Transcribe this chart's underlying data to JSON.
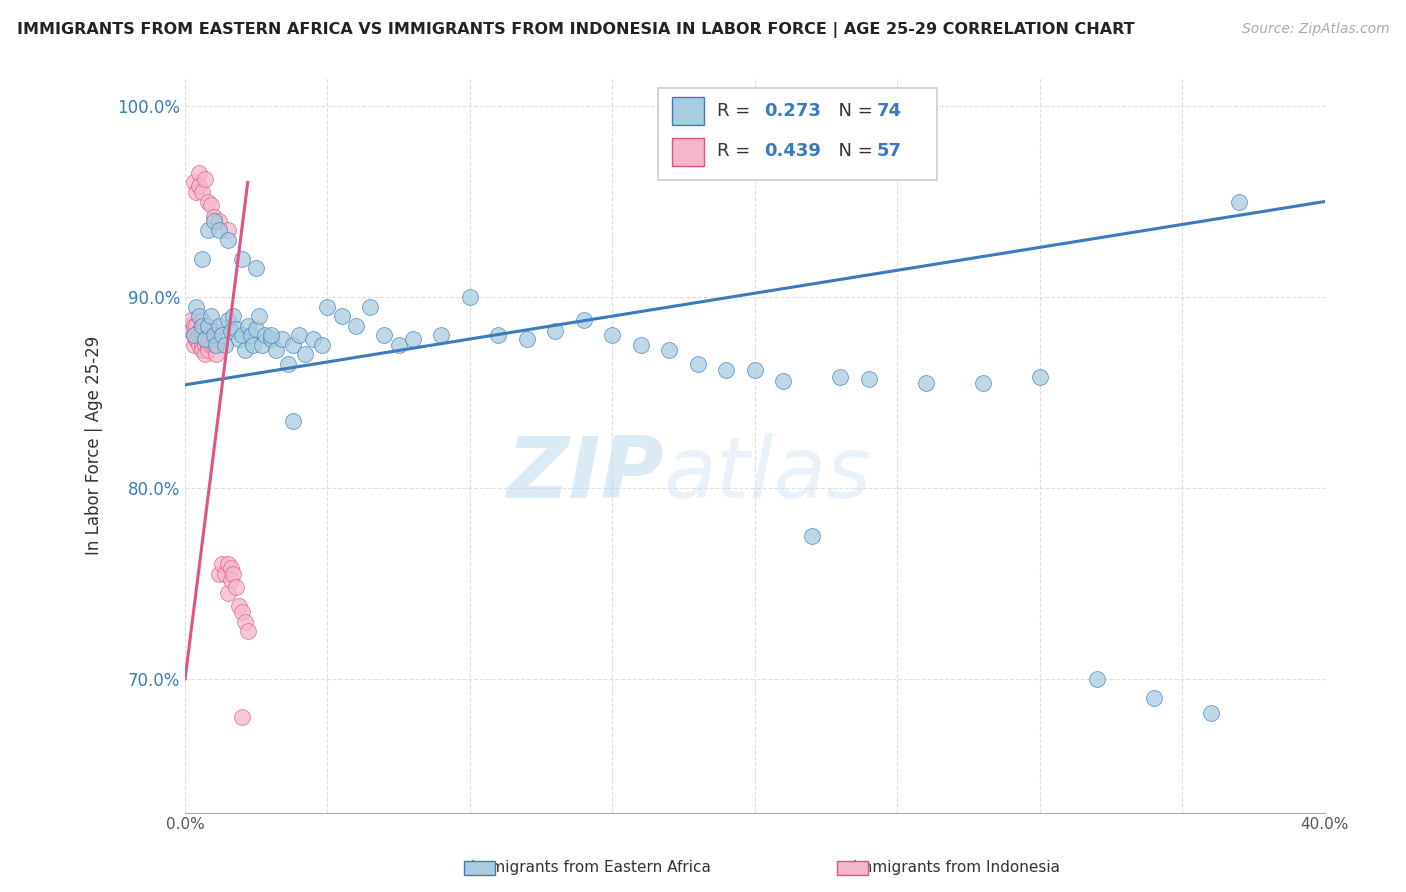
{
  "title": "IMMIGRANTS FROM EASTERN AFRICA VS IMMIGRANTS FROM INDONESIA IN LABOR FORCE | AGE 25-29 CORRELATION CHART",
  "source": "Source: ZipAtlas.com",
  "ylabel": "In Labor Force | Age 25-29",
  "xmin": 0.0,
  "xmax": 0.4,
  "ymin": 0.63,
  "ymax": 1.015,
  "yticks": [
    0.7,
    0.8,
    0.9,
    1.0
  ],
  "ytick_labels": [
    "70.0%",
    "80.0%",
    "90.0%",
    "100.0%"
  ],
  "xticks": [
    0.0,
    0.05,
    0.1,
    0.15,
    0.2,
    0.25,
    0.3,
    0.35,
    0.4
  ],
  "legend1_R": "0.273",
  "legend1_N": "74",
  "legend2_R": "0.439",
  "legend2_N": "57",
  "blue_color": "#a8cce0",
  "pink_color": "#f5b8cb",
  "blue_line_color": "#3a7abf",
  "pink_line_color": "#e05580",
  "watermark_zip": "ZIP",
  "watermark_atlas": "atlas",
  "legend_label1": "Immigrants from Eastern Africa",
  "legend_label2": "Immigrants from Indonesia",
  "blue_scatter_x": [
    0.003,
    0.004,
    0.005,
    0.006,
    0.007,
    0.008,
    0.009,
    0.01,
    0.011,
    0.012,
    0.013,
    0.014,
    0.015,
    0.016,
    0.017,
    0.018,
    0.019,
    0.02,
    0.021,
    0.022,
    0.023,
    0.024,
    0.025,
    0.026,
    0.027,
    0.028,
    0.03,
    0.032,
    0.034,
    0.036,
    0.038,
    0.04,
    0.042,
    0.045,
    0.048,
    0.05,
    0.055,
    0.06,
    0.065,
    0.07,
    0.075,
    0.08,
    0.09,
    0.1,
    0.11,
    0.12,
    0.13,
    0.14,
    0.15,
    0.16,
    0.17,
    0.18,
    0.19,
    0.2,
    0.21,
    0.22,
    0.23,
    0.24,
    0.26,
    0.28,
    0.3,
    0.32,
    0.34,
    0.36,
    0.37,
    0.006,
    0.008,
    0.01,
    0.012,
    0.015,
    0.02,
    0.025,
    0.03,
    0.038
  ],
  "blue_scatter_y": [
    0.88,
    0.895,
    0.89,
    0.885,
    0.878,
    0.885,
    0.89,
    0.88,
    0.875,
    0.885,
    0.88,
    0.875,
    0.888,
    0.882,
    0.89,
    0.883,
    0.878,
    0.88,
    0.872,
    0.885,
    0.88,
    0.875,
    0.883,
    0.89,
    0.875,
    0.88,
    0.878,
    0.872,
    0.878,
    0.865,
    0.875,
    0.88,
    0.87,
    0.878,
    0.875,
    0.895,
    0.89,
    0.885,
    0.895,
    0.88,
    0.875,
    0.878,
    0.88,
    0.9,
    0.88,
    0.878,
    0.882,
    0.888,
    0.88,
    0.875,
    0.872,
    0.865,
    0.862,
    0.862,
    0.856,
    0.775,
    0.858,
    0.857,
    0.855,
    0.855,
    0.858,
    0.7,
    0.69,
    0.682,
    0.95,
    0.92,
    0.935,
    0.94,
    0.935,
    0.93,
    0.92,
    0.915,
    0.88,
    0.835
  ],
  "pink_scatter_x": [
    0.001,
    0.002,
    0.002,
    0.003,
    0.003,
    0.003,
    0.004,
    0.004,
    0.004,
    0.005,
    0.005,
    0.005,
    0.006,
    0.006,
    0.006,
    0.006,
    0.006,
    0.007,
    0.007,
    0.007,
    0.007,
    0.008,
    0.008,
    0.008,
    0.008,
    0.009,
    0.009,
    0.01,
    0.01,
    0.01,
    0.011,
    0.011,
    0.012,
    0.013,
    0.014,
    0.015,
    0.015,
    0.016,
    0.016,
    0.017,
    0.018,
    0.019,
    0.02,
    0.021,
    0.022,
    0.003,
    0.004,
    0.005,
    0.005,
    0.006,
    0.007,
    0.008,
    0.009,
    0.01,
    0.012,
    0.015,
    0.02
  ],
  "pink_scatter_y": [
    0.885,
    0.882,
    0.888,
    0.88,
    0.875,
    0.885,
    0.878,
    0.885,
    0.878,
    0.882,
    0.875,
    0.88,
    0.888,
    0.882,
    0.875,
    0.88,
    0.872,
    0.878,
    0.885,
    0.875,
    0.87,
    0.882,
    0.875,
    0.878,
    0.872,
    0.875,
    0.88,
    0.878,
    0.882,
    0.875,
    0.875,
    0.87,
    0.755,
    0.76,
    0.755,
    0.76,
    0.745,
    0.758,
    0.752,
    0.755,
    0.748,
    0.738,
    0.735,
    0.73,
    0.725,
    0.96,
    0.955,
    0.965,
    0.958,
    0.955,
    0.962,
    0.95,
    0.948,
    0.942,
    0.94,
    0.935,
    0.68
  ],
  "blue_trend_x": [
    0.0,
    0.4
  ],
  "blue_trend_y": [
    0.854,
    0.95
  ],
  "pink_trend_x": [
    0.0,
    0.022
  ],
  "pink_trend_y": [
    0.7,
    0.96
  ]
}
